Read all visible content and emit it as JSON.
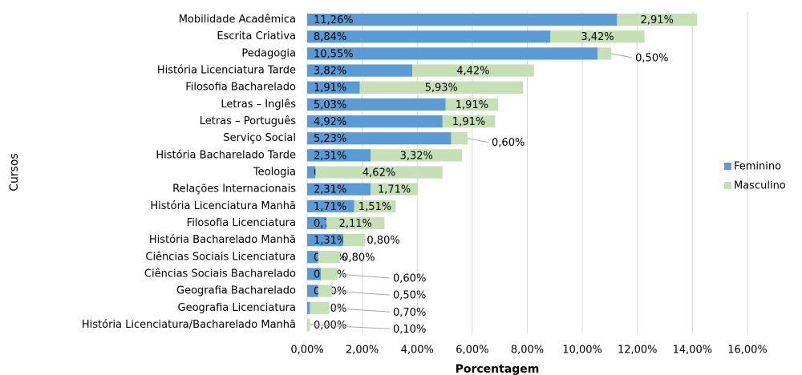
{
  "chart_data": {
    "type": "stacked_bar_horizontal",
    "x_label": "Porcentagem",
    "y_label": "Cursos",
    "categories": [
      "Mobilidade Acadêmica",
      "Escrita Criativa",
      "Pedagogia",
      "História Licenciatura Tarde",
      "Filosofia Bacharelado",
      "Letras – Inglês",
      "Letras – Português",
      "Serviço Social",
      "História Bacharelado Tarde",
      "Teologia",
      "Relações Internacionais",
      "História Licenciatura Manhã",
      "Filosofia Licenciatura",
      "História Bacharelado Manhã",
      "Ciências Sociais Licenciatura",
      "Ciências Sociais Bacharelado",
      "Geografia Bacharelado",
      "Geografia Licenciatura",
      "História Licenciatura/Bacharelado Manhã"
    ],
    "series": [
      {
        "name": "Feminino",
        "color": "#5b9bd5",
        "values": [
          11.26,
          8.84,
          10.55,
          3.82,
          1.91,
          5.03,
          4.92,
          5.23,
          2.31,
          0.3,
          2.31,
          1.71,
          0.7,
          1.31,
          0.4,
          0.5,
          0.4,
          0.1,
          0.0
        ],
        "value_labels": [
          "11,26%",
          "8,84%",
          "10,55%",
          "3,82%",
          "1,91%",
          "5,03%",
          "4,92%",
          "5,23%",
          "2,31%",
          "0,30%",
          "2,31%",
          "1,71%",
          "0,70%",
          "1,31%",
          "0,40%",
          "0,50%",
          "0,40%",
          "0,10%",
          "0,00%"
        ]
      },
      {
        "name": "Masculino",
        "color": "#c5e0b4",
        "values": [
          2.91,
          3.42,
          0.5,
          4.42,
          5.93,
          1.91,
          1.91,
          0.6,
          3.32,
          4.62,
          1.71,
          1.51,
          2.11,
          0.8,
          0.8,
          0.6,
          0.5,
          0.7,
          0.1
        ],
        "value_labels": [
          "2,91%",
          "3,42%",
          "0,50%",
          "4,42%",
          "5,93%",
          "1,91%",
          "1,91%",
          "0,60%",
          "3,32%",
          "4,62%",
          "1,71%",
          "1,51%",
          "2,11%",
          "0,80%",
          "0,80%",
          "0,60%",
          "0,50%",
          "0,70%",
          "0,10%"
        ]
      }
    ],
    "xlim": [
      0,
      16
    ],
    "xticks": [
      {
        "value": 0,
        "label": "0,00%"
      },
      {
        "value": 2,
        "label": "2,00%"
      },
      {
        "value": 4,
        "label": "4,00%"
      },
      {
        "value": 6,
        "label": "6,00%"
      },
      {
        "value": 8,
        "label": "8,00%"
      },
      {
        "value": 10,
        "label": "10,00%"
      },
      {
        "value": 12,
        "label": "12,00%"
      },
      {
        "value": 14,
        "label": "14,00%"
      },
      {
        "value": 16,
        "label": "16,00%"
      }
    ],
    "grid": true,
    "legend": "right"
  }
}
